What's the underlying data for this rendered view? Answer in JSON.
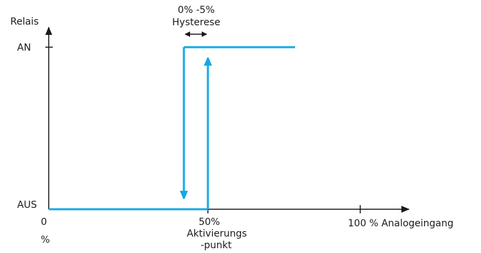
{
  "diagram": {
    "y_axis_title": "Relais",
    "y_high_label": "AN",
    "y_low_label": "AUS",
    "x_zero_label": "0",
    "x_zero_unit": "%",
    "x_mid_label": "50%",
    "x_mid_desc_line1": "Aktivierungs",
    "x_mid_desc_line2": "-punkt",
    "x_max_label": "100 % Analogeingang",
    "hysteresis_range": "0% -5%",
    "hysteresis_label": "Hysterese"
  },
  "colors": {
    "signal": "#14a9e6",
    "axis": "#1a1a1a"
  }
}
